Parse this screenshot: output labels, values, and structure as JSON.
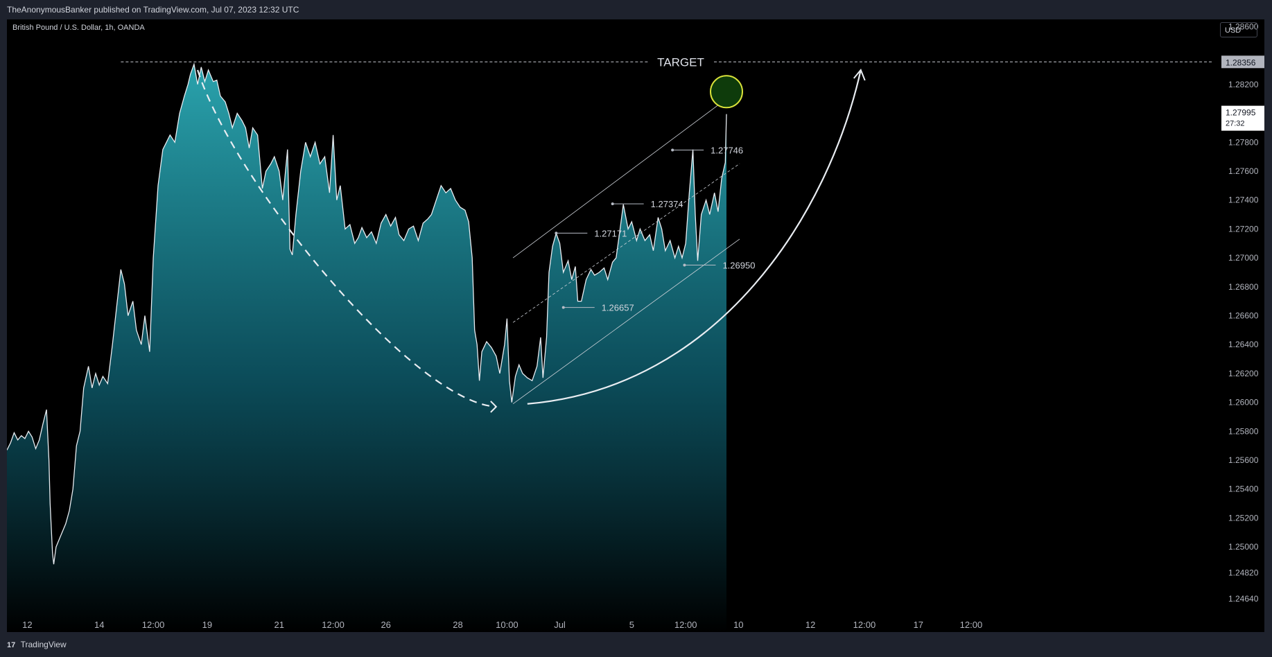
{
  "header": {
    "published_text": "TheAnonymousBanker published on TradingView.com, Jul 07, 2023 12:32 UTC"
  },
  "chart_header": {
    "symbol": "British Pound / U.S. Dollar, 1h, OANDA",
    "currency": "USD"
  },
  "footer": {
    "logo_mark": "17",
    "brand": "TradingView"
  },
  "colors": {
    "line": "#e9edf2",
    "area_top": "#2aa3ad",
    "area_bottom": "#000000",
    "target": "#c8cbd2",
    "circle": "#d9e23a",
    "circle_fill": "#0e3b0b"
  },
  "chart_data": {
    "type": "area",
    "ylim": [
      1.2455,
      1.2865
    ],
    "y_ticks": [
      "1.28600",
      "1.28200",
      "1.27800",
      "1.27600",
      "1.27400",
      "1.27200",
      "1.27000",
      "1.26800",
      "1.26600",
      "1.26400",
      "1.26200",
      "1.26000",
      "1.25800",
      "1.25600",
      "1.25400",
      "1.25200",
      "1.25000",
      "1.24820",
      "1.24640"
    ],
    "x_ticks": [
      "12",
      "14",
      "12:00",
      "19",
      "21",
      "12:00",
      "26",
      "28",
      "10:00",
      "Jul",
      "5",
      "12:00",
      "10",
      "12",
      "12:00",
      "17",
      "12:00"
    ],
    "x_range": [
      0,
      100
    ],
    "x_tick_positions": [
      1.7,
      7.7,
      12.2,
      16.7,
      22.7,
      27.2,
      31.6,
      37.6,
      41.7,
      46.1,
      52.1,
      56.6,
      61.0,
      67.0,
      71.5,
      76.0,
      80.4
    ],
    "last_bar_x": 59.9,
    "series": [
      {
        "points": [
          [
            0,
            1.2567
          ],
          [
            0.3,
            1.2572
          ],
          [
            0.6,
            1.2579
          ],
          [
            0.9,
            1.2574
          ],
          [
            1.2,
            1.2577
          ],
          [
            1.5,
            1.2575
          ],
          [
            1.8,
            1.258
          ],
          [
            2.1,
            1.2576
          ],
          [
            2.4,
            1.2568
          ],
          [
            2.7,
            1.2574
          ],
          [
            3.0,
            1.2585
          ],
          [
            3.3,
            1.2595
          ],
          [
            3.5,
            1.256
          ],
          [
            3.6,
            1.253
          ],
          [
            3.8,
            1.2496
          ],
          [
            3.9,
            1.2488
          ],
          [
            4.1,
            1.25
          ],
          [
            4.5,
            1.2508
          ],
          [
            4.9,
            1.2516
          ],
          [
            5.2,
            1.2525
          ],
          [
            5.5,
            1.254
          ],
          [
            5.8,
            1.257
          ],
          [
            6.1,
            1.258
          ],
          [
            6.4,
            1.261
          ],
          [
            6.8,
            1.2625
          ],
          [
            7.1,
            1.261
          ],
          [
            7.4,
            1.262
          ],
          [
            7.7,
            1.2612
          ],
          [
            8.0,
            1.2618
          ],
          [
            8.4,
            1.2613
          ],
          [
            8.8,
            1.264
          ],
          [
            9.2,
            1.267
          ],
          [
            9.5,
            1.2692
          ],
          [
            9.8,
            1.2682
          ],
          [
            10.1,
            1.266
          ],
          [
            10.5,
            1.267
          ],
          [
            10.8,
            1.265
          ],
          [
            11.2,
            1.264
          ],
          [
            11.5,
            1.266
          ],
          [
            11.9,
            1.2635
          ],
          [
            12.2,
            1.27
          ],
          [
            12.6,
            1.275
          ],
          [
            13.0,
            1.2775
          ],
          [
            13.3,
            1.278
          ],
          [
            13.6,
            1.2785
          ],
          [
            14.0,
            1.278
          ],
          [
            14.4,
            1.28
          ],
          [
            14.8,
            1.2812
          ],
          [
            15.1,
            1.282
          ],
          [
            15.3,
            1.2827
          ],
          [
            15.6,
            1.2834
          ],
          [
            15.9,
            1.282
          ],
          [
            16.2,
            1.2832
          ],
          [
            16.5,
            1.2822
          ],
          [
            16.8,
            1.283
          ],
          [
            17.2,
            1.2822
          ],
          [
            17.5,
            1.2823
          ],
          [
            17.8,
            1.2812
          ],
          [
            18.2,
            1.2808
          ],
          [
            18.5,
            1.28
          ],
          [
            18.8,
            1.279
          ],
          [
            19.2,
            1.28
          ],
          [
            19.6,
            1.2795
          ],
          [
            19.9,
            1.279
          ],
          [
            20.2,
            1.2776
          ],
          [
            20.5,
            1.279
          ],
          [
            20.9,
            1.2785
          ],
          [
            21.3,
            1.2748
          ],
          [
            21.6,
            1.276
          ],
          [
            22.0,
            1.2765
          ],
          [
            22.3,
            1.277
          ],
          [
            22.7,
            1.276
          ],
          [
            23.0,
            1.274
          ],
          [
            23.4,
            1.2775
          ],
          [
            23.6,
            1.2706
          ],
          [
            23.8,
            1.2702
          ],
          [
            24.1,
            1.273
          ],
          [
            24.5,
            1.276
          ],
          [
            24.9,
            1.278
          ],
          [
            25.3,
            1.277
          ],
          [
            25.7,
            1.278
          ],
          [
            26.1,
            1.2765
          ],
          [
            26.5,
            1.277
          ],
          [
            26.9,
            1.2745
          ],
          [
            27.2,
            1.2785
          ],
          [
            27.5,
            1.274
          ],
          [
            27.8,
            1.275
          ],
          [
            28.2,
            1.272
          ],
          [
            28.6,
            1.2723
          ],
          [
            29.0,
            1.271
          ],
          [
            29.3,
            1.2714
          ],
          [
            29.6,
            1.2721
          ],
          [
            30.0,
            1.2714
          ],
          [
            30.4,
            1.2718
          ],
          [
            30.8,
            1.271
          ],
          [
            31.2,
            1.2724
          ],
          [
            31.6,
            1.273
          ],
          [
            32.0,
            1.2722
          ],
          [
            32.4,
            1.2728
          ],
          [
            32.7,
            1.2716
          ],
          [
            33.1,
            1.2712
          ],
          [
            33.5,
            1.272
          ],
          [
            33.9,
            1.2722
          ],
          [
            34.3,
            1.2712
          ],
          [
            34.7,
            1.2724
          ],
          [
            35.1,
            1.2727
          ],
          [
            35.4,
            1.273
          ],
          [
            35.8,
            1.274
          ],
          [
            36.2,
            1.275
          ],
          [
            36.6,
            1.2745
          ],
          [
            37.0,
            1.2748
          ],
          [
            37.4,
            1.274
          ],
          [
            37.8,
            1.2735
          ],
          [
            38.2,
            1.2733
          ],
          [
            38.5,
            1.2725
          ],
          [
            38.8,
            1.27
          ],
          [
            39.0,
            1.265
          ],
          [
            39.2,
            1.264
          ],
          [
            39.4,
            1.2615
          ],
          [
            39.6,
            1.2635
          ],
          [
            40.0,
            1.2642
          ],
          [
            40.4,
            1.2638
          ],
          [
            40.8,
            1.2632
          ],
          [
            41.1,
            1.262
          ],
          [
            41.5,
            1.264
          ],
          [
            41.7,
            1.2658
          ],
          [
            41.9,
            1.2615
          ],
          [
            42.1,
            1.26
          ],
          [
            42.4,
            1.2618
          ],
          [
            42.7,
            1.2626
          ],
          [
            43.0,
            1.262
          ],
          [
            43.4,
            1.2617
          ],
          [
            43.8,
            1.2615
          ],
          [
            44.2,
            1.2625
          ],
          [
            44.5,
            1.2645
          ],
          [
            44.7,
            1.2617
          ],
          [
            45.0,
            1.2645
          ],
          [
            45.2,
            1.269
          ],
          [
            45.5,
            1.2708
          ],
          [
            45.8,
            1.2717
          ],
          [
            46.1,
            1.271
          ],
          [
            46.4,
            1.269
          ],
          [
            46.8,
            1.2698
          ],
          [
            47.1,
            1.2685
          ],
          [
            47.4,
            1.2694
          ],
          [
            47.6,
            1.267
          ],
          [
            47.9,
            1.267
          ],
          [
            48.3,
            1.2685
          ],
          [
            48.7,
            1.2692
          ],
          [
            49.0,
            1.2688
          ],
          [
            49.4,
            1.269
          ],
          [
            49.8,
            1.2693
          ],
          [
            50.1,
            1.2685
          ],
          [
            50.5,
            1.2697
          ],
          [
            50.8,
            1.27
          ],
          [
            51.1,
            1.2718
          ],
          [
            51.4,
            1.2737
          ],
          [
            51.8,
            1.272
          ],
          [
            52.1,
            1.2725
          ],
          [
            52.5,
            1.2712
          ],
          [
            52.8,
            1.272
          ],
          [
            53.2,
            1.2712
          ],
          [
            53.6,
            1.2716
          ],
          [
            53.9,
            1.2705
          ],
          [
            54.3,
            1.2728
          ],
          [
            54.6,
            1.272
          ],
          [
            54.9,
            1.2705
          ],
          [
            55.3,
            1.2712
          ],
          [
            55.7,
            1.27
          ],
          [
            56.0,
            1.2708
          ],
          [
            56.3,
            1.27
          ],
          [
            56.6,
            1.271
          ],
          [
            56.9,
            1.2745
          ],
          [
            57.2,
            1.2775
          ],
          [
            57.4,
            1.273
          ],
          [
            57.6,
            1.2698
          ],
          [
            57.9,
            1.273
          ],
          [
            58.3,
            1.274
          ],
          [
            58.6,
            1.273
          ],
          [
            59.0,
            1.2745
          ],
          [
            59.3,
            1.2732
          ],
          [
            59.6,
            1.2755
          ],
          [
            59.9,
            1.2766
          ],
          [
            60.0,
            1.27995
          ]
        ]
      }
    ],
    "target": {
      "label": "TARGET",
      "value": 1.28356,
      "price_label": "1.28356"
    },
    "last_price": {
      "value": 1.27995,
      "price_label": "1.27995",
      "countdown": "27:32"
    },
    "annotations": [
      {
        "label": "1.27171",
        "x": 45.8,
        "y": 1.27171
      },
      {
        "label": "1.27374",
        "x": 50.5,
        "y": 1.27374
      },
      {
        "label": "1.26657",
        "x": 46.4,
        "y": 1.26657
      },
      {
        "label": "1.27746",
        "x": 55.5,
        "y": 1.27746
      },
      {
        "label": "1.26950",
        "x": 56.5,
        "y": 1.2695
      }
    ],
    "channel": {
      "upper": [
        [
          42.2,
          1.27
        ],
        [
          61.1,
          1.28168
        ]
      ],
      "middle": [
        [
          42.2,
          1.26553
        ],
        [
          61.1,
          1.27652
        ]
      ],
      "lower": [
        [
          42.2,
          1.2599
        ],
        [
          61.1,
          1.2713
        ]
      ]
    },
    "dashed_curve": [
      [
        15.9,
        1.283
      ],
      [
        19.0,
        1.275
      ],
      [
        34.0,
        1.26
      ],
      [
        40.8,
        1.2597
      ]
    ],
    "up_arrow": [
      [
        43.4,
        1.2599
      ],
      [
        59.4,
        1.261
      ],
      [
        68.5,
        1.273
      ],
      [
        71.2,
        1.283
      ]
    ],
    "target_circle": {
      "x": 60.0,
      "y": 1.2815
    }
  }
}
